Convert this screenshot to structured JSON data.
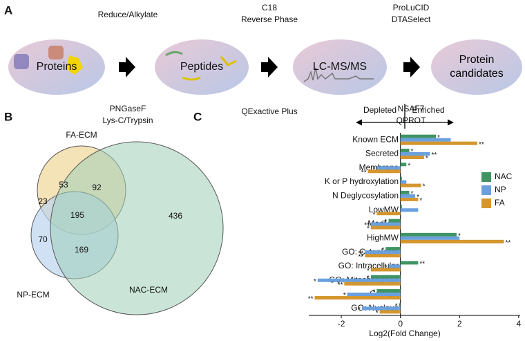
{
  "panels": [
    "A",
    "B",
    "C"
  ],
  "workflow": {
    "steps": [
      "Proteins",
      "Peptides",
      "LC-MS/MS",
      "Protein candidates"
    ],
    "above": [
      [
        "Reduce/Alkylate"
      ],
      [
        "C18",
        "Reverse Phase"
      ],
      [
        "ProLuCID",
        "DTASelect"
      ]
    ],
    "below": [
      [
        "PNGaseF",
        "Lys-C/Trypsin"
      ],
      [
        "QExactive Plus"
      ],
      [
        "NSAF7",
        "QPROT"
      ]
    ]
  },
  "venn": {
    "sets": [
      "FA-ECM",
      "NP-ECM",
      "NAC-ECM"
    ],
    "regions": [
      53,
      92,
      23,
      195,
      70,
      169,
      436
    ]
  },
  "chart_data": {
    "type": "hbar",
    "header_left": "Depleted",
    "header_right": "Enriched",
    "x_label": "Log2(Fold Change)",
    "categories": [
      "Known ECM",
      "Secreted",
      "Membrane",
      "K or P hydroxylation",
      "N Deglycosylation",
      "LowMW",
      "MedMW",
      "HighMW",
      "GO: Cytoplasm",
      "GO: Intracellular",
      "GO: Mitochondrion",
      "GO: ER",
      "GO: Nucleus"
    ],
    "series": [
      {
        "name": "NAC",
        "color": "#3f9463",
        "values": [
          1.2,
          0.3,
          0.2,
          0.05,
          0.3,
          0.05,
          -0.4,
          1.9,
          -0.5,
          0.6,
          -1.0,
          -0.8,
          -0.05
        ],
        "significance": [
          "*",
          "*",
          "*",
          null,
          "*",
          null,
          "*",
          "*",
          "*",
          "**",
          "*",
          "*",
          "*"
        ]
      },
      {
        "name": "NP",
        "color": "#6aa0de",
        "values": [
          1.7,
          1.0,
          -0.8,
          0.2,
          0.5,
          0.6,
          -1.0,
          2.0,
          -1.2,
          -0.4,
          -2.8,
          -1.8,
          -1.3
        ],
        "significance": [
          null,
          "**",
          "*",
          null,
          "*",
          null,
          "**",
          null,
          "**",
          "*",
          "*",
          "*",
          "*"
        ]
      },
      {
        "name": "FA",
        "color": "#d4962d",
        "values": [
          2.6,
          0.8,
          -1.1,
          0.7,
          0.6,
          -0.8,
          -1.0,
          3.5,
          -1.2,
          -1.0,
          -1.9,
          -2.9,
          -0.7
        ],
        "significance": [
          "**",
          "*",
          "**",
          "*",
          "*",
          "*",
          "*",
          "**",
          "**",
          "*",
          "**",
          "**",
          "*"
        ]
      }
    ],
    "xlim": [
      -3.1,
      4.05
    ],
    "xticks": [
      -2,
      0,
      2,
      4
    ]
  }
}
